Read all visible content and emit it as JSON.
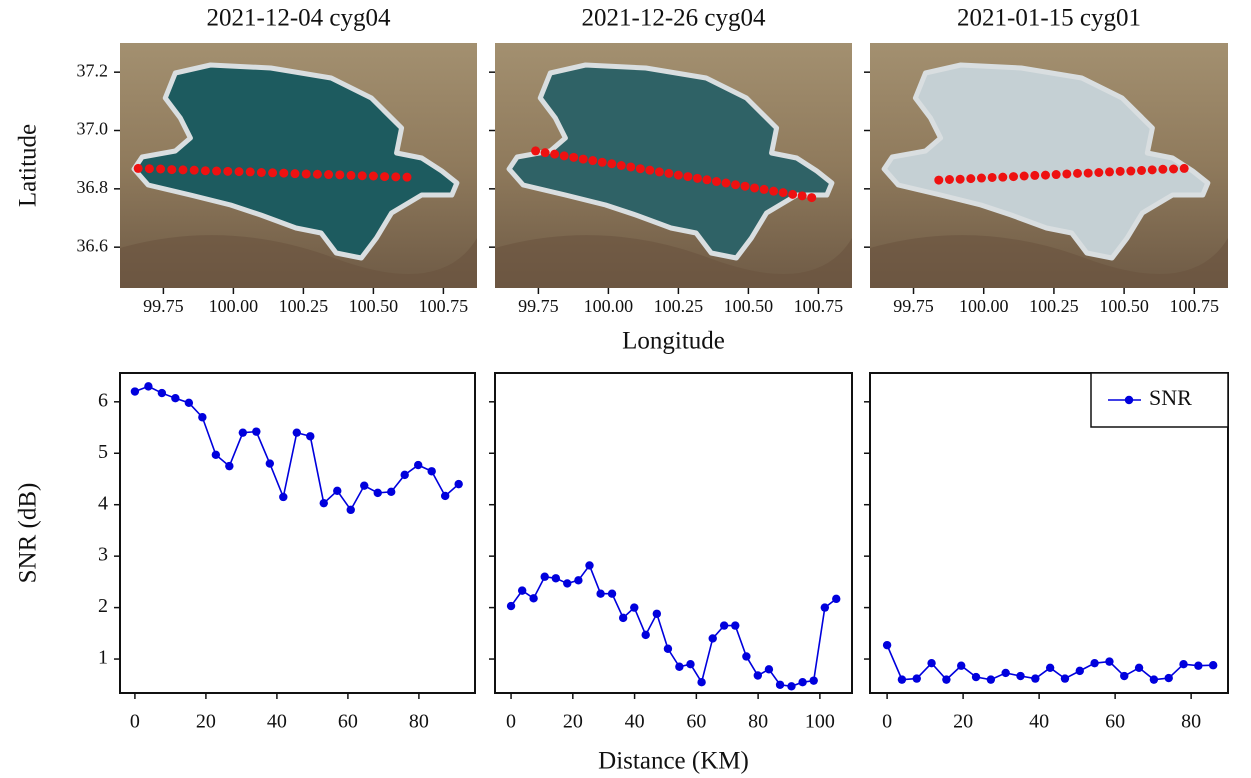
{
  "chart_data": [
    {
      "type": "scatter",
      "title": "2021-12-04 cyg04",
      "ylabel": "Latitude",
      "x": [
        99.66,
        99.7,
        99.74,
        99.78,
        99.82,
        99.86,
        99.9,
        99.94,
        99.98,
        100.02,
        100.06,
        100.1,
        100.14,
        100.18,
        100.22,
        100.26,
        100.3,
        100.34,
        100.38,
        100.42,
        100.46,
        100.5,
        100.54,
        100.58,
        100.62
      ],
      "series": [
        {
          "color": "#ee1111",
          "values": [
            36.87,
            36.869,
            36.868,
            36.866,
            36.865,
            36.864,
            36.862,
            36.861,
            36.86,
            36.859,
            36.858,
            36.856,
            36.855,
            36.854,
            36.852,
            36.851,
            36.85,
            36.849,
            36.848,
            36.846,
            36.845,
            36.844,
            36.842,
            36.841,
            36.84
          ]
        }
      ],
      "lake_color": "#1d5b5f",
      "xlim": [
        99.595,
        100.87
      ],
      "ylim": [
        36.46,
        37.3
      ],
      "xticks": [
        99.75,
        {
          "value": 100,
          "label": "100.00"
        },
        100.25,
        {
          "value": 100.5,
          "label": "100.50"
        },
        100.75
      ],
      "yticks": [
        36.6,
        36.8,
        {
          "value": 37,
          "label": "37.0"
        },
        37.2
      ]
    },
    {
      "type": "scatter",
      "title": "2021-12-26 cyg04",
      "xlabel": "Longitude",
      "x": [
        99.74,
        99.774,
        99.808,
        99.842,
        99.876,
        99.91,
        99.944,
        99.978,
        100.012,
        100.046,
        100.08,
        100.114,
        100.148,
        100.182,
        100.216,
        100.25,
        100.284,
        100.318,
        100.352,
        100.386,
        100.42,
        100.454,
        100.488,
        100.522,
        100.556,
        100.59,
        100.624,
        100.658,
        100.692,
        100.726
      ],
      "series": [
        {
          "color": "#ee1111",
          "values": [
            36.93,
            36.924,
            36.919,
            36.913,
            36.908,
            36.902,
            36.897,
            36.891,
            36.886,
            36.88,
            36.875,
            36.869,
            36.864,
            36.858,
            36.853,
            36.847,
            36.842,
            36.836,
            36.831,
            36.825,
            36.82,
            36.814,
            36.809,
            36.803,
            36.798,
            36.792,
            36.787,
            36.781,
            36.776,
            36.77
          ]
        }
      ],
      "lake_color": "#2f6266",
      "xlim": [
        99.595,
        100.87
      ],
      "ylim": [
        36.46,
        37.3
      ],
      "xticks": [
        99.75,
        {
          "value": 100,
          "label": "100.00"
        },
        100.25,
        {
          "value": 100.5,
          "label": "100.50"
        },
        100.75
      ]
    },
    {
      "type": "scatter",
      "title": "2021-01-15 cyg01",
      "x": [
        99.84,
        99.878,
        99.916,
        99.954,
        99.992,
        100.03,
        100.068,
        100.106,
        100.144,
        100.182,
        100.22,
        100.258,
        100.296,
        100.334,
        100.372,
        100.41,
        100.448,
        100.486,
        100.524,
        100.562,
        100.6,
        100.638,
        100.676,
        100.714
      ],
      "series": [
        {
          "color": "#ee1111",
          "values": [
            36.83,
            36.832,
            36.833,
            36.835,
            36.837,
            36.839,
            36.84,
            36.842,
            36.844,
            36.846,
            36.847,
            36.849,
            36.851,
            36.853,
            36.854,
            36.856,
            36.858,
            36.86,
            36.861,
            36.863,
            36.865,
            36.867,
            36.868,
            36.87
          ]
        }
      ],
      "lake_color": "#c5d0d4",
      "xlim": [
        99.595,
        100.87
      ],
      "ylim": [
        36.46,
        37.3
      ],
      "xticks": [
        99.75,
        {
          "value": 100,
          "label": "100.00"
        },
        100.25,
        {
          "value": 100.5,
          "label": "100.50"
        },
        100.75
      ]
    },
    {
      "type": "line",
      "ylabel": "SNR (dB)",
      "x": [
        0,
        3.8,
        7.6,
        11.4,
        15.2,
        19,
        22.8,
        26.6,
        30.4,
        34.2,
        38,
        41.8,
        45.6,
        49.4,
        53.2,
        57,
        60.8,
        64.6,
        68.4,
        72.2,
        76,
        79.8,
        83.6,
        87.4,
        91.2
      ],
      "series": [
        {
          "color": "#0000dd",
          "values": [
            6.2,
            6.3,
            6.17,
            6.07,
            5.98,
            5.7,
            4.97,
            4.75,
            5.4,
            5.42,
            4.8,
            4.15,
            5.4,
            5.33,
            4.03,
            4.27,
            3.9,
            4.37,
            4.23,
            4.25,
            4.58,
            4.77,
            4.65,
            4.17,
            4.4
          ]
        }
      ],
      "xlim": [
        -4.2,
        95.8
      ],
      "ylim": [
        0.34,
        6.56
      ],
      "xticks": [
        0,
        20,
        40,
        60,
        80
      ],
      "yticks": [
        1,
        2,
        3,
        4,
        5,
        6
      ]
    },
    {
      "type": "line",
      "xlabel": "Distance (KM)",
      "x": [
        0,
        3.6,
        7.3,
        10.9,
        14.5,
        18.2,
        21.8,
        25.4,
        29,
        32.7,
        36.3,
        39.9,
        43.6,
        47.2,
        50.8,
        54.5,
        58.1,
        61.7,
        65.3,
        69,
        72.6,
        76.2,
        79.9,
        83.5,
        87.1,
        90.8,
        94.4,
        98,
        101.6,
        105.3
      ],
      "series": [
        {
          "color": "#0000dd",
          "values": [
            2.03,
            2.33,
            2.18,
            2.6,
            2.57,
            2.47,
            2.53,
            2.82,
            2.27,
            2.27,
            1.8,
            2.0,
            1.47,
            1.88,
            1.2,
            0.85,
            0.9,
            0.55,
            1.4,
            1.65,
            1.65,
            1.05,
            0.68,
            0.8,
            0.5,
            0.47,
            0.55,
            0.58,
            2.0,
            2.17
          ]
        }
      ],
      "xlim": [
        -5.2,
        110.4
      ],
      "ylim": [
        0.34,
        6.56
      ],
      "xticks": [
        0,
        20,
        40,
        60,
        80,
        100
      ]
    },
    {
      "type": "line",
      "legend": "upper right",
      "x": [
        0,
        3.9,
        7.8,
        11.7,
        15.6,
        19.5,
        23.4,
        27.3,
        31.2,
        35.1,
        39,
        42.9,
        46.8,
        50.7,
        54.6,
        58.5,
        62.4,
        66.3,
        70.2,
        74.1,
        78,
        81.9,
        85.8
      ],
      "series": [
        {
          "name": "SNR",
          "color": "#0000dd",
          "values": [
            1.27,
            0.6,
            0.62,
            0.92,
            0.6,
            0.87,
            0.65,
            0.6,
            0.73,
            0.67,
            0.62,
            0.83,
            0.62,
            0.77,
            0.92,
            0.95,
            0.67,
            0.83,
            0.6,
            0.63,
            0.9,
            0.87,
            0.88
          ]
        }
      ],
      "xlim": [
        -4.5,
        89.7
      ],
      "ylim": [
        0.34,
        6.56
      ],
      "xticks": [
        0,
        20,
        40,
        60,
        80
      ]
    }
  ]
}
